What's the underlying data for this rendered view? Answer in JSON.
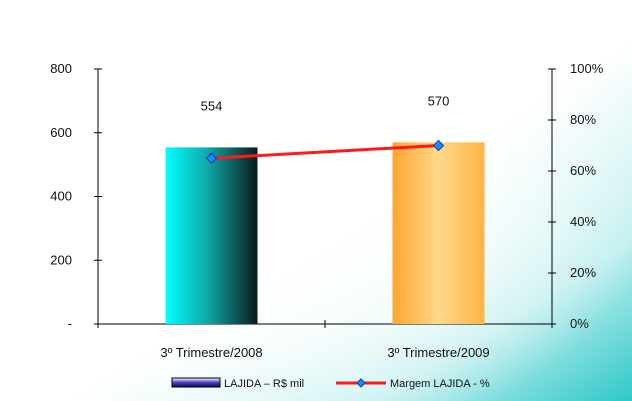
{
  "chart_data": {
    "type": "bar",
    "categories": [
      "3º Trimestre/2008",
      "3º Trimestre/2009"
    ],
    "series": [
      {
        "name": "LAJIDA – R$ mil",
        "type": "bar",
        "axis": "left",
        "values": [
          554,
          570
        ],
        "data_labels": [
          "554",
          "570"
        ],
        "colors": [
          "#18c8c8",
          "#ffb347"
        ]
      },
      {
        "name": "Margem LAJIDA - %",
        "type": "line",
        "axis": "right",
        "values": [
          65,
          70
        ],
        "line_color": "#ff1a1a",
        "marker_color": "#1a8cff"
      }
    ],
    "y_left": {
      "ticks": [
        0,
        200,
        400,
        600,
        800
      ],
      "tick_labels": [
        "-",
        "200",
        "400",
        "600",
        "800"
      ],
      "ylim": [
        0,
        800
      ]
    },
    "y_right": {
      "ticks": [
        0,
        20,
        40,
        60,
        80,
        100
      ],
      "tick_labels": [
        "0%",
        "20%",
        "40%",
        "60%",
        "80%",
        "100%"
      ],
      "ylim": [
        0,
        100
      ]
    },
    "legend": {
      "placement": "bottom"
    },
    "grid": false,
    "background": {
      "gradient_from": "#ffffff",
      "gradient_to": "#2ec8c8"
    }
  }
}
